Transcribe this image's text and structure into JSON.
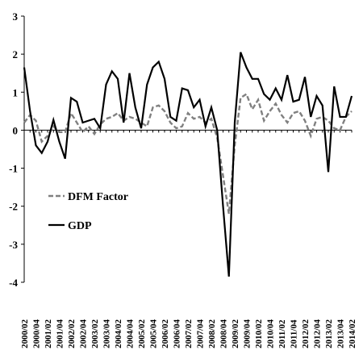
{
  "chart_data": {
    "type": "line",
    "title": "",
    "xlabel": "",
    "ylabel": "",
    "ylim": [
      -4,
      3
    ],
    "yticks": [
      -4,
      -3,
      -2,
      -1,
      0,
      1,
      2,
      3
    ],
    "grid": false,
    "legend_position": "middle-left",
    "x": [
      "2000/02",
      "2000/03",
      "2000/04",
      "2001/01",
      "2001/02",
      "2001/03",
      "2001/04",
      "2002/01",
      "2002/02",
      "2002/03",
      "2002/04",
      "2003/01",
      "2003/02",
      "2003/03",
      "2003/04",
      "2004/01",
      "2004/02",
      "2004/03",
      "2004/04",
      "2005/01",
      "2005/02",
      "2005/03",
      "2005/04",
      "2006/01",
      "2006/02",
      "2006/03",
      "2006/04",
      "2007/01",
      "2007/02",
      "2007/03",
      "2007/04",
      "2008/01",
      "2008/02",
      "2008/03",
      "2008/04",
      "2009/01",
      "2009/02",
      "2009/03",
      "2009/04",
      "2010/01",
      "2010/02",
      "2010/03",
      "2010/04",
      "2011/01",
      "2011/02",
      "2011/03",
      "2011/04",
      "2012/01",
      "2012/02",
      "2012/03",
      "2012/04",
      "2013/01",
      "2013/02",
      "2013/03",
      "2013/04",
      "2014/01",
      "2014/02"
    ],
    "xtick_labels": [
      "2000/02",
      "2000/04",
      "2001/02",
      "2001/04",
      "2002/02",
      "2002/04",
      "2003/02",
      "2003/04",
      "2004/02",
      "2004/04",
      "2005/02",
      "2005/04",
      "2006/02",
      "2006/04",
      "2007/02",
      "2007/04",
      "2008/02",
      "2008/04",
      "2009/02",
      "2009/04",
      "2010/02",
      "2010/04",
      "2011/02",
      "2011/04",
      "2012/02",
      "2012/04",
      "2013/02",
      "2013/04",
      "2014/02"
    ],
    "series": [
      {
        "name": "GDP",
        "color": "#000000",
        "style": "solid",
        "values": [
          1.65,
          0.5,
          -0.4,
          -0.6,
          -0.3,
          0.27,
          -0.3,
          -0.75,
          0.85,
          0.75,
          0.2,
          0.25,
          0.3,
          0.05,
          1.2,
          1.55,
          1.35,
          0.2,
          1.5,
          0.6,
          0.05,
          1.2,
          1.65,
          1.8,
          1.35,
          0.35,
          0.25,
          1.1,
          1.05,
          0.6,
          0.8,
          0.1,
          0.6,
          0.0,
          -2.0,
          -3.85,
          0.2,
          2.05,
          1.65,
          1.35,
          1.35,
          0.95,
          0.8,
          1.1,
          0.8,
          1.45,
          0.75,
          0.8,
          1.4,
          0.35,
          0.9,
          0.65,
          -1.1,
          1.15,
          0.35,
          0.35,
          0.9
        ]
      },
      {
        "name": "DFM Factor",
        "color": "#808080",
        "style": "dashed",
        "values": [
          0.2,
          0.4,
          0.25,
          -0.3,
          -0.15,
          0.1,
          -0.05,
          -0.05,
          0.45,
          0.2,
          -0.05,
          0.1,
          -0.1,
          0.15,
          0.3,
          0.35,
          0.45,
          0.25,
          0.35,
          0.3,
          0.2,
          0.1,
          0.6,
          0.65,
          0.5,
          0.2,
          0.05,
          0.1,
          0.45,
          0.3,
          0.35,
          0.2,
          0.3,
          -0.2,
          -1.2,
          -2.2,
          -0.4,
          0.85,
          0.95,
          0.55,
          0.8,
          0.25,
          0.5,
          0.7,
          0.4,
          0.2,
          0.45,
          0.5,
          0.25,
          -0.15,
          0.3,
          0.35,
          0.25,
          0.05,
          0.0,
          0.35,
          0.5
        ]
      }
    ]
  }
}
